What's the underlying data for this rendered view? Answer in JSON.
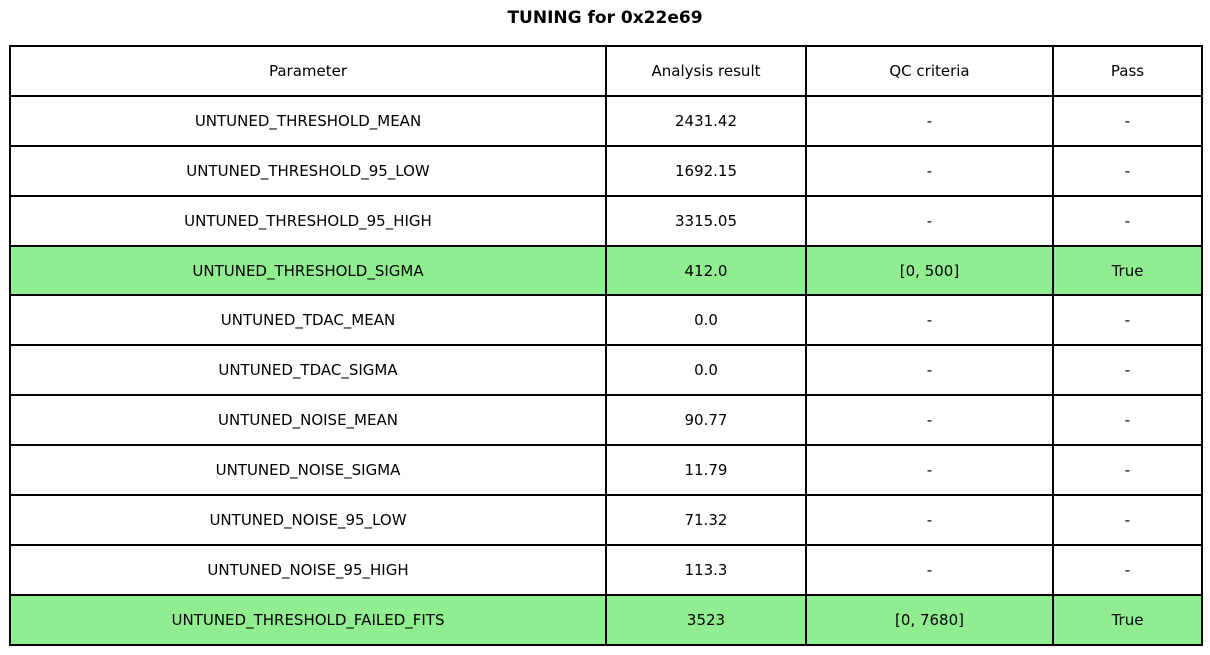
{
  "chart_data": {
    "type": "table",
    "title": "TUNING for 0x22e69",
    "columns": [
      "Parameter",
      "Analysis result",
      "QC criteria",
      "Pass"
    ],
    "rows": [
      {
        "parameter": "UNTUNED_THRESHOLD_MEAN",
        "analysis_result": "2431.42",
        "qc_criteria": "-",
        "pass": "-",
        "highlight": false
      },
      {
        "parameter": "UNTUNED_THRESHOLD_95_LOW",
        "analysis_result": "1692.15",
        "qc_criteria": "-",
        "pass": "-",
        "highlight": false
      },
      {
        "parameter": "UNTUNED_THRESHOLD_95_HIGH",
        "analysis_result": "3315.05",
        "qc_criteria": "-",
        "pass": "-",
        "highlight": false
      },
      {
        "parameter": "UNTUNED_THRESHOLD_SIGMA",
        "analysis_result": "412.0",
        "qc_criteria": "[0, 500]",
        "pass": "True",
        "highlight": true
      },
      {
        "parameter": "UNTUNED_TDAC_MEAN",
        "analysis_result": "0.0",
        "qc_criteria": "-",
        "pass": "-",
        "highlight": false
      },
      {
        "parameter": "UNTUNED_TDAC_SIGMA",
        "analysis_result": "0.0",
        "qc_criteria": "-",
        "pass": "-",
        "highlight": false
      },
      {
        "parameter": "UNTUNED_NOISE_MEAN",
        "analysis_result": "90.77",
        "qc_criteria": "-",
        "pass": "-",
        "highlight": false
      },
      {
        "parameter": "UNTUNED_NOISE_SIGMA",
        "analysis_result": "11.79",
        "qc_criteria": "-",
        "pass": "-",
        "highlight": false
      },
      {
        "parameter": "UNTUNED_NOISE_95_LOW",
        "analysis_result": "71.32",
        "qc_criteria": "-",
        "pass": "-",
        "highlight": false
      },
      {
        "parameter": "UNTUNED_NOISE_95_HIGH",
        "analysis_result": "113.3",
        "qc_criteria": "-",
        "pass": "-",
        "highlight": false
      },
      {
        "parameter": "UNTUNED_THRESHOLD_FAILED_FITS",
        "analysis_result": "3523",
        "qc_criteria": "[0, 7680]",
        "pass": "True",
        "highlight": true
      }
    ],
    "layout": {
      "legend": "none",
      "grid": "full-cell-borders",
      "highlighted_row_indices": [
        3,
        10
      ]
    }
  },
  "colors": {
    "highlight_green": "#90ee90",
    "border": "#000000",
    "background": "#ffffff",
    "text": "#000000"
  }
}
